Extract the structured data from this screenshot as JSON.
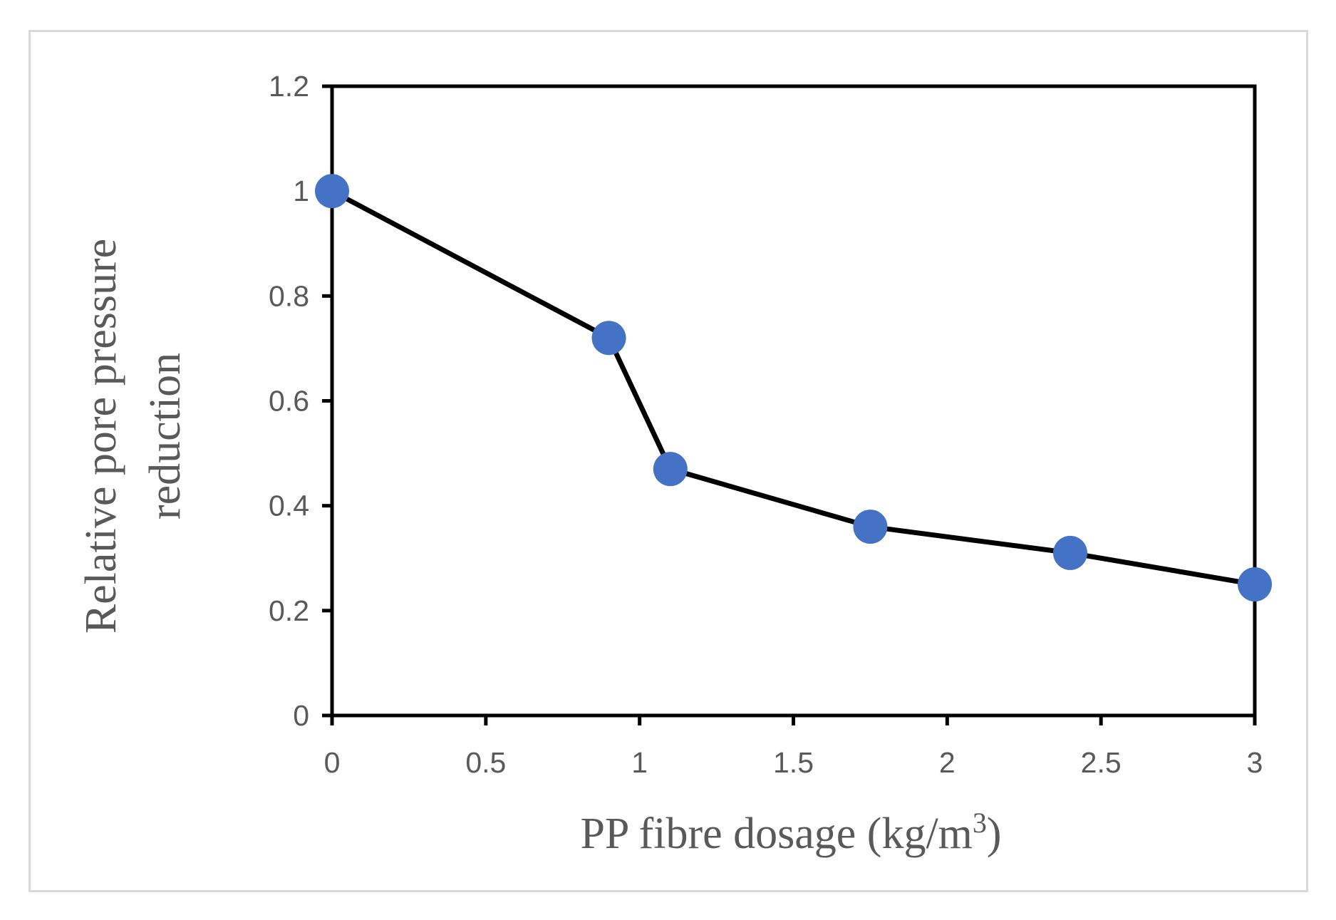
{
  "chart_data": {
    "type": "line",
    "title": "",
    "xlabel": "PP fibre dosage (kg/m",
    "xlabel_superscript": "3",
    "xlabel_suffix": ")",
    "ylabel_lines": [
      "Relative pore pressure",
      "reduction"
    ],
    "xlim": [
      0,
      3
    ],
    "ylim": [
      0,
      1.2
    ],
    "x_ticks": [
      0,
      0.5,
      1,
      1.5,
      2,
      2.5,
      3
    ],
    "x_tick_labels": [
      "0",
      "0.5",
      "1",
      "1.5",
      "2",
      "2.5",
      "3"
    ],
    "y_ticks": [
      0,
      0.2,
      0.4,
      0.6,
      0.8,
      1.0,
      1.2
    ],
    "y_tick_labels": [
      "0",
      "0.2",
      "0.4",
      "0.6",
      "0.8",
      "1",
      "1.2"
    ],
    "grid": false,
    "legend": "none",
    "series": [
      {
        "name": "Relative pore pressure reduction",
        "x": [
          0,
          0.9,
          1.1,
          1.75,
          2.4,
          3
        ],
        "values": [
          1.0,
          0.72,
          0.47,
          0.36,
          0.31,
          0.25
        ],
        "line_color": "#000000",
        "marker_color": "#4472c4"
      }
    ]
  }
}
